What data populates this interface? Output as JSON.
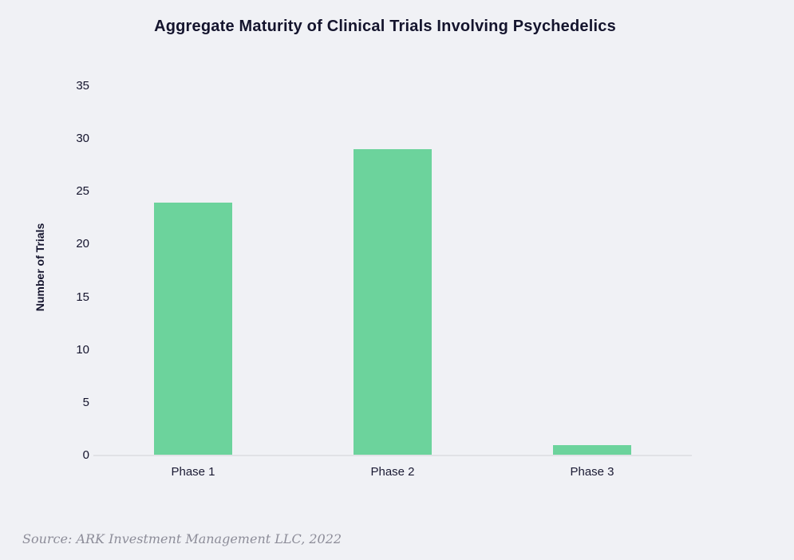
{
  "source": "Source: ARK Investment Management LLC, 2022",
  "colors": {
    "background": "#f0f1f5",
    "bar": "#6cd39c",
    "text": "#14142d",
    "axis_line": "#e1e2e6",
    "source_text": "#8d8d99"
  },
  "chart_data": {
    "type": "bar",
    "title": "Aggregate Maturity of Clinical Trials Involving Psychedelics",
    "categories": [
      "Phase 1",
      "Phase 2",
      "Phase 3"
    ],
    "values": [
      24,
      29,
      1
    ],
    "xlabel": "",
    "ylabel": "Number of Trials",
    "ylim": [
      0,
      35
    ],
    "yticks": [
      0,
      5,
      10,
      15,
      20,
      25,
      30,
      35
    ],
    "grid": false,
    "legend": null,
    "bar_color": "#6cd39c"
  }
}
